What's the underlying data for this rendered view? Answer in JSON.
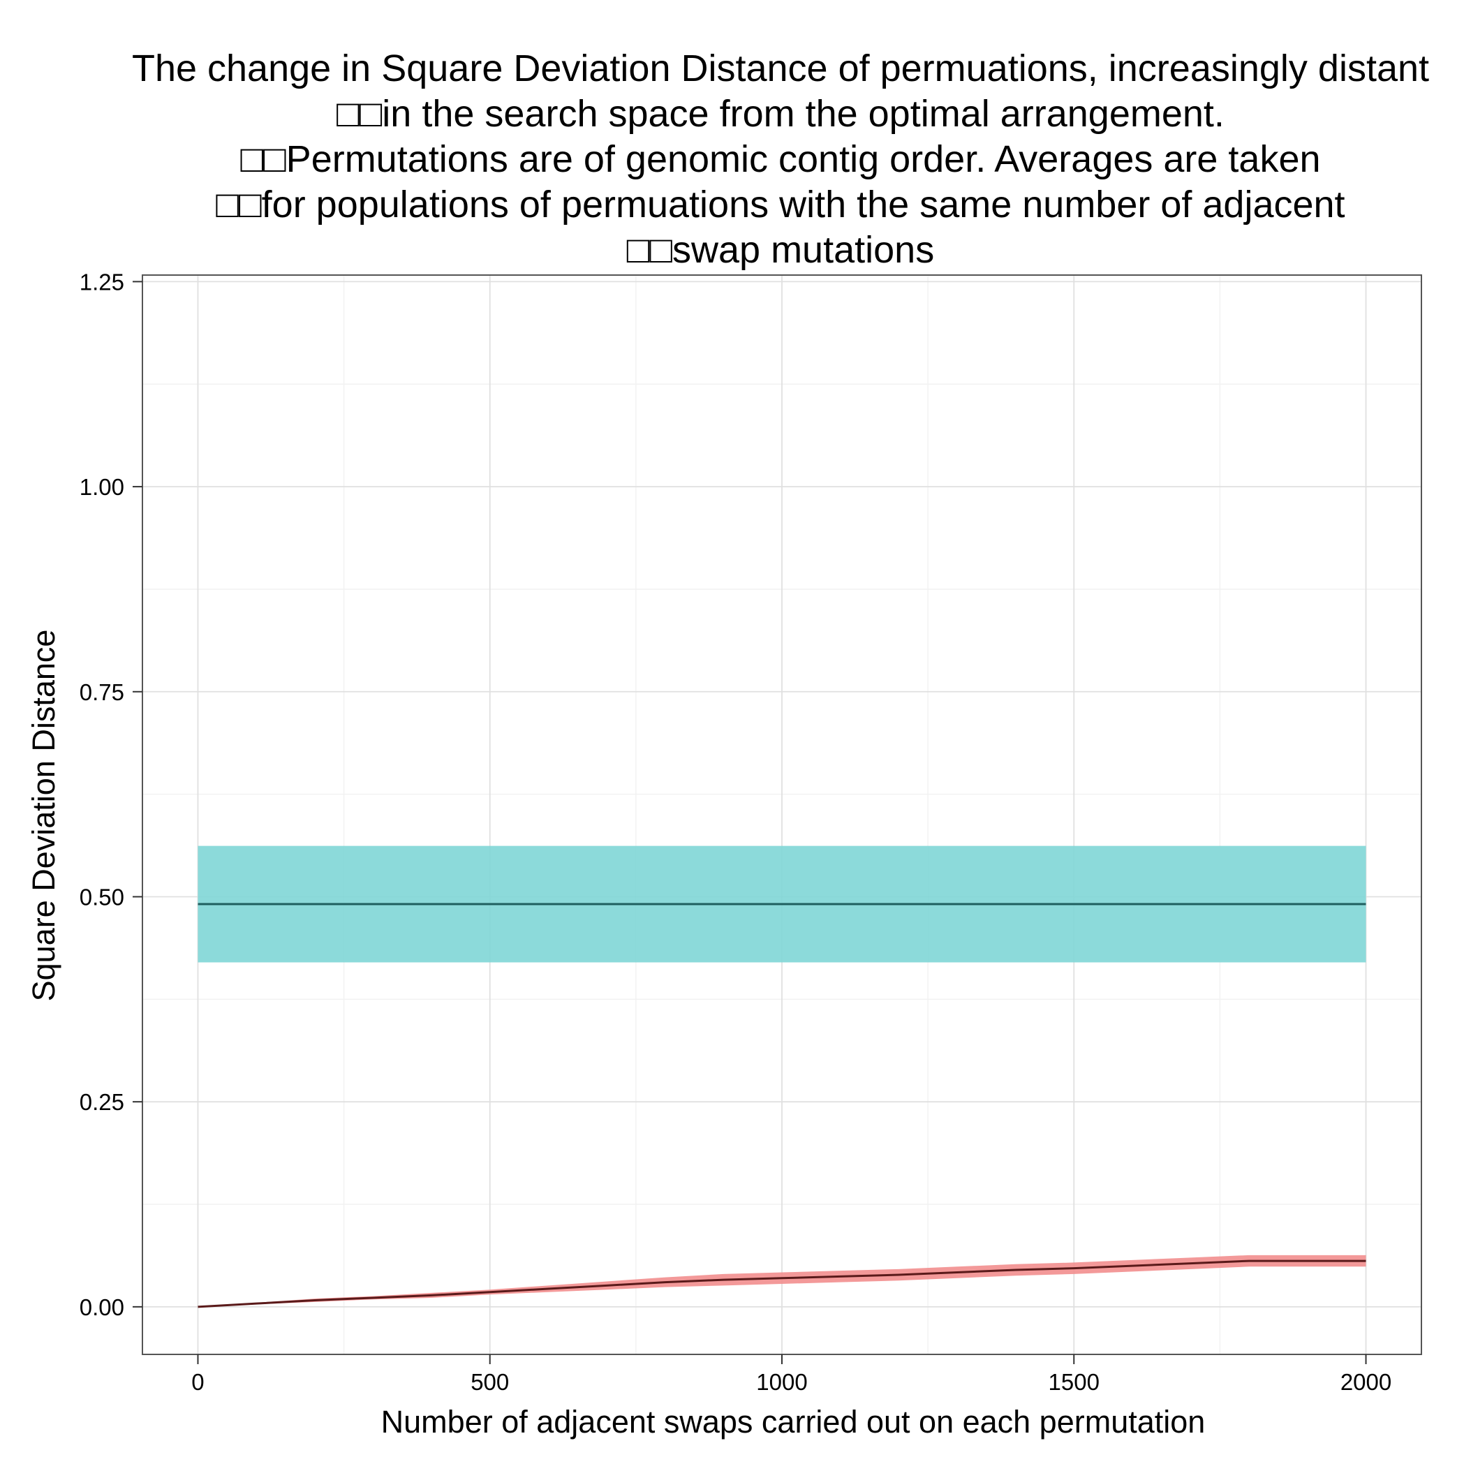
{
  "chart_data": {
    "type": "line",
    "title_lines": [
      "The change in Square Deviation Distance of permuations, increasingly distant",
      "□□in the search space from the optimal arrangement.",
      "□□Permutations are of genomic contig order. Averages are taken",
      "□□for populations of permuations with the same number of adjacent",
      "□□swap mutations"
    ],
    "xlabel": "Number of adjacent swaps carried out on each permutation",
    "ylabel": "Square Deviation Distance",
    "xlim": [
      -95,
      2095
    ],
    "ylim": [
      -0.058,
      1.258
    ],
    "x_ticks": [
      0,
      500,
      1000,
      1500,
      2000
    ],
    "x_tick_labels": [
      "0",
      "500",
      "1000",
      "1500",
      "2000"
    ],
    "y_ticks": [
      0,
      0.25,
      0.5,
      0.75,
      1.0,
      1.25
    ],
    "y_tick_labels": [
      "0.00",
      "0.25",
      "0.50",
      "0.75",
      "1.00",
      "1.25"
    ],
    "grid": true,
    "legend": "none",
    "series": [
      {
        "x": [
          0,
          2000
        ],
        "y": [
          0.491,
          0.491
        ],
        "lower": [
          0.42,
          0.42
        ],
        "upper": [
          0.562,
          0.562
        ],
        "line_color": "#1f5f5f",
        "band_color": "#7fd6d6"
      },
      {
        "x": [
          0,
          100,
          200,
          300,
          400,
          500,
          600,
          700,
          800,
          900,
          1000,
          1100,
          1200,
          1300,
          1400,
          1500,
          1600,
          1700,
          1800,
          1900,
          2000
        ],
        "y": [
          0.0,
          0.004,
          0.008,
          0.011,
          0.014,
          0.018,
          0.022,
          0.026,
          0.03,
          0.033,
          0.035,
          0.037,
          0.039,
          0.042,
          0.045,
          0.047,
          0.05,
          0.053,
          0.056,
          0.056,
          0.056
        ],
        "lower": [
          0.0,
          0.003,
          0.006,
          0.009,
          0.011,
          0.015,
          0.018,
          0.021,
          0.024,
          0.026,
          0.028,
          0.03,
          0.032,
          0.035,
          0.038,
          0.04,
          0.043,
          0.046,
          0.049,
          0.049,
          0.049
        ],
        "upper": [
          0.0,
          0.005,
          0.01,
          0.013,
          0.017,
          0.021,
          0.026,
          0.031,
          0.036,
          0.04,
          0.042,
          0.044,
          0.046,
          0.049,
          0.052,
          0.054,
          0.057,
          0.06,
          0.063,
          0.063,
          0.063
        ],
        "line_color": "#5a1a1a",
        "band_color": "#f28e8e"
      }
    ],
    "colors": {
      "panel_border": "#555555",
      "grid_major": "#e0e0e0",
      "grid_minor": "#f2f2f2",
      "axis_tick": "#333333"
    }
  }
}
